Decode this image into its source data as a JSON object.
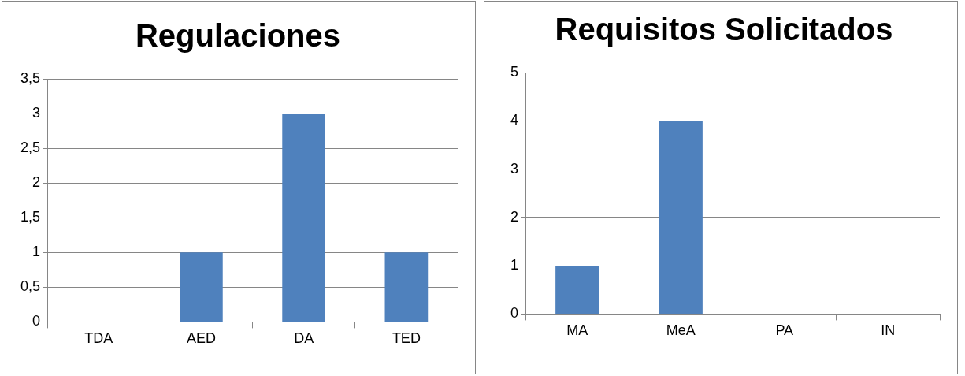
{
  "chart_data": [
    {
      "type": "bar",
      "title": "Regulaciones",
      "categories": [
        "TDA",
        "AED",
        "DA",
        "TED"
      ],
      "values": [
        0,
        1,
        3,
        1
      ],
      "color": "#4f81bd",
      "ylim": [
        0,
        3.5
      ],
      "yticks": [
        0,
        {
          "value": 0.5,
          "label": "0,5"
        },
        1,
        {
          "value": 1.5,
          "label": "1,5"
        },
        2,
        {
          "value": 2.5,
          "label": "2,5"
        },
        3,
        {
          "value": 3.5,
          "label": "3,5"
        }
      ],
      "grid": "y",
      "legend": false
    },
    {
      "type": "bar",
      "title": "Requisitos Solicitados",
      "categories": [
        "MA",
        "MeA",
        "PA",
        "IN"
      ],
      "values": [
        1,
        4,
        0,
        0
      ],
      "color": "#4f81bd",
      "ylim": [
        0,
        5
      ],
      "yticks": [
        0,
        1,
        2,
        3,
        4,
        5
      ],
      "grid": "y",
      "legend": false
    }
  ]
}
